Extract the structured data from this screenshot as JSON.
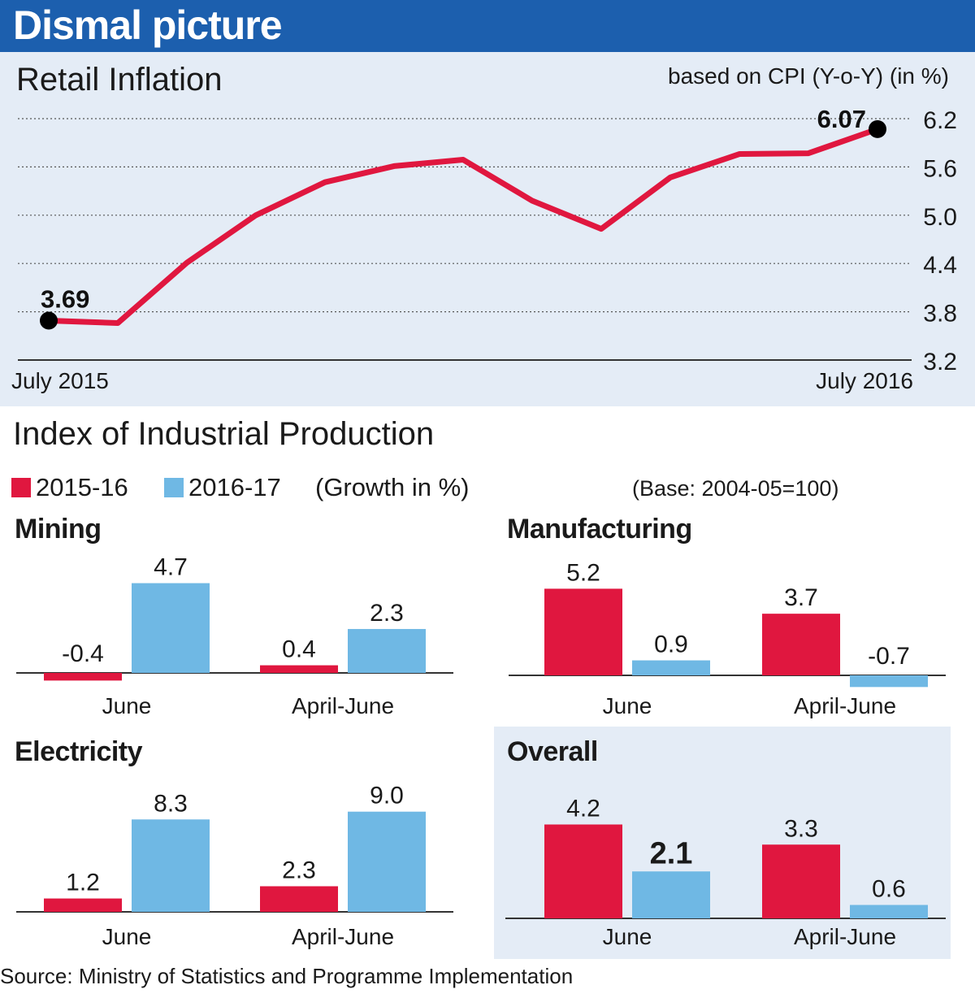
{
  "header": {
    "title": "Dismal picture"
  },
  "cpi": {
    "title": "Retail Inflation",
    "unit_note": "based on CPI (Y-o-Y) (in %)",
    "start_label": "July 2015",
    "end_label": "July 2016",
    "first_value_label": "3.69",
    "last_value_label": "6.07"
  },
  "iip": {
    "title": "Index of Industrial Production",
    "legend": {
      "a": "2015-16",
      "b": "2016-17",
      "note": "(Growth in %)"
    },
    "base_note": "(Base: 2004-05=100)",
    "panels": {
      "mining": "Mining",
      "manufacturing": "Manufacturing",
      "electricity": "Electricity",
      "overall": "Overall"
    }
  },
  "source": "Source: Ministry of Statistics and Programme Implementation",
  "colors": {
    "header": "#1c5fae",
    "panel_bg": "#e4ecf6",
    "series_2015_16": "#e0173f",
    "series_2016_17": "#6fb8e4",
    "line": "#e0173f"
  },
  "chart_data": [
    {
      "type": "line",
      "title": "Retail Inflation",
      "ylabel": "based on CPI (Y-o-Y) (in %)",
      "x": [
        "July 2015",
        "Aug 2015",
        "Sep 2015",
        "Oct 2015",
        "Nov 2015",
        "Dec 2015",
        "Jan 2016",
        "Feb 2016",
        "Mar 2016",
        "Apr 2016",
        "May 2016",
        "Jun 2016",
        "July 2016"
      ],
      "x_tick_labels": [
        "July 2015",
        "July 2016"
      ],
      "values": [
        3.69,
        3.66,
        4.41,
        5.0,
        5.41,
        5.61,
        5.69,
        5.18,
        4.83,
        5.47,
        5.76,
        5.77,
        6.07
      ],
      "ylim": [
        3.2,
        6.2
      ],
      "yticks": [
        "6.2",
        "5.6",
        "5.0",
        "4.4",
        "3.8",
        "3.2"
      ],
      "grid": true,
      "annotations": [
        "3.69",
        "6.07"
      ]
    },
    {
      "type": "bar",
      "title": "Mining",
      "categories": [
        "June",
        "April-June"
      ],
      "series": [
        {
          "name": "2015-16",
          "values": [
            -0.4,
            0.4
          ]
        },
        {
          "name": "2016-17",
          "values": [
            4.7,
            2.3
          ]
        }
      ],
      "value_labels": [
        [
          "-0.4",
          "0.4"
        ],
        [
          "4.7",
          "2.3"
        ]
      ]
    },
    {
      "type": "bar",
      "title": "Manufacturing",
      "categories": [
        "June",
        "April-June"
      ],
      "series": [
        {
          "name": "2015-16",
          "values": [
            5.2,
            3.7
          ]
        },
        {
          "name": "2016-17",
          "values": [
            0.9,
            -0.7
          ]
        }
      ],
      "value_labels": [
        [
          "5.2",
          "3.7"
        ],
        [
          "0.9",
          "-0.7"
        ]
      ]
    },
    {
      "type": "bar",
      "title": "Electricity",
      "categories": [
        "June",
        "April-June"
      ],
      "series": [
        {
          "name": "2015-16",
          "values": [
            1.2,
            2.3
          ]
        },
        {
          "name": "2016-17",
          "values": [
            8.3,
            9.0
          ]
        }
      ],
      "value_labels": [
        [
          "1.2",
          "2.3"
        ],
        [
          "8.3",
          "9.0"
        ]
      ]
    },
    {
      "type": "bar",
      "title": "Overall",
      "categories": [
        "June",
        "April-June"
      ],
      "series": [
        {
          "name": "2015-16",
          "values": [
            4.2,
            3.3
          ]
        },
        {
          "name": "2016-17",
          "values": [
            2.1,
            0.6
          ]
        }
      ],
      "value_labels": [
        [
          "4.2",
          "3.3"
        ],
        [
          "2.1",
          "0.6"
        ]
      ]
    }
  ]
}
